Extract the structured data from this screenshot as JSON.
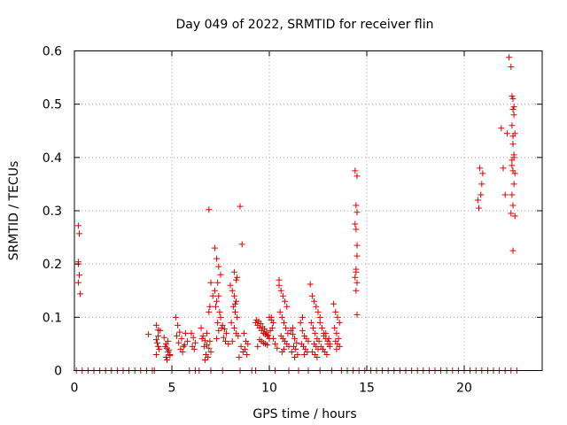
{
  "chart_data": {
    "type": "scatter",
    "title": "Day 049 of 2022, SRMTID for receiver flin",
    "xlabel": "GPS time / hours",
    "ylabel": "SRMTID / TECUs",
    "xlim": [
      0,
      24
    ],
    "ylim": [
      0,
      0.6
    ],
    "xticks": [
      0,
      5,
      10,
      15,
      20
    ],
    "yticks": [
      0,
      0.1,
      0.2,
      0.3,
      0.4,
      0.5,
      0.6
    ],
    "xtick_labels": [
      "0",
      "5",
      "10",
      "15",
      "20"
    ],
    "ytick_labels": [
      "0",
      "0.1",
      "0.2",
      "0.3",
      "0.4",
      "0.5",
      "0.6"
    ],
    "grid": true,
    "legend": "none",
    "marker": "plus",
    "color": "#e00000",
    "series": [
      {
        "name": "SRMTID",
        "x": [
          0.2,
          0.25,
          0.2,
          0.2,
          0.25,
          0.2,
          0.3,
          3.8,
          4.2,
          4.3,
          4.3,
          4.2,
          4.25,
          4.3,
          4.4,
          4.35,
          4.2,
          4.6,
          4.7,
          4.75,
          4.8,
          4.9,
          4.7,
          4.65,
          4.8,
          4.85,
          4.9,
          4.75,
          5.2,
          5.3,
          5.4,
          5.5,
          5.35,
          5.6,
          5.7,
          5.8,
          5.45,
          5.55,
          5.25,
          5.65,
          6.0,
          6.1,
          6.2,
          6.05,
          6.15,
          6.5,
          6.6,
          6.7,
          6.8,
          6.9,
          7.0,
          6.75,
          6.85,
          6.95,
          6.55,
          6.65,
          6.8,
          6.7,
          6.9,
          6.9,
          7.0,
          7.1,
          6.95,
          7.2,
          7.3,
          7.4,
          7.5,
          7.35,
          7.2,
          7.4,
          7.3,
          7.25,
          7.45,
          7.5,
          7.35,
          7.55,
          7.4,
          7.3,
          7.6,
          7.7,
          7.8,
          7.65,
          7.75,
          7.9,
          8.0,
          8.1,
          8.2,
          8.3,
          8.15,
          8.25,
          8.35,
          8.05,
          8.2,
          8.3,
          8.4,
          8.1,
          8.3,
          8.2,
          8.35,
          8.25,
          8.5,
          8.6,
          8.7,
          8.8,
          8.9,
          8.55,
          8.75,
          8.65,
          8.85,
          8.45,
          9.3,
          9.4,
          9.5,
          9.6,
          9.7,
          9.8,
          9.9,
          10.0,
          9.35,
          9.45,
          9.55,
          9.65,
          9.75,
          9.85,
          9.95,
          9.5,
          9.6,
          9.7,
          9.8,
          9.9,
          9.4,
          10.1,
          10.2,
          10.3,
          10.4,
          10.0,
          10.1,
          10.2,
          10.15,
          10.05,
          10.5,
          10.6,
          10.7,
          10.8,
          10.9,
          10.55,
          10.65,
          10.75,
          10.85,
          10.95,
          10.6,
          10.7,
          10.8,
          10.9,
          11.0,
          10.75,
          10.5,
          10.65,
          11.1,
          11.2,
          11.3,
          11.4,
          11.25,
          11.35,
          11.15,
          11.45,
          11.3,
          11.2,
          11.6,
          11.7,
          11.8,
          11.9,
          12.0,
          11.65,
          11.75,
          11.85,
          11.95,
          11.7,
          11.8,
          12.1,
          12.2,
          12.3,
          12.4,
          12.5,
          12.6,
          12.15,
          12.25,
          12.35,
          12.45,
          12.55,
          12.3,
          12.4,
          12.5,
          12.2,
          12.35,
          12.45,
          12.6,
          12.7,
          12.8,
          12.9,
          13.0,
          13.1,
          12.65,
          12.75,
          12.85,
          12.95,
          13.05,
          12.8,
          12.9,
          13.0,
          13.1,
          13.3,
          13.4,
          13.5,
          13.6,
          13.35,
          13.45,
          13.55,
          13.4,
          13.5,
          13.6,
          13.45,
          14.4,
          14.5,
          14.45,
          14.5,
          14.4,
          14.45,
          14.5,
          14.45,
          14.4,
          14.5,
          14.45,
          14.5,
          14.5,
          14.45,
          20.7,
          20.75,
          20.8,
          20.9,
          20.95,
          20.85,
          21.9,
          22.0,
          22.1,
          22.2,
          22.3,
          22.4,
          22.45,
          22.5,
          22.55,
          22.5,
          22.45,
          22.6,
          22.5,
          22.55,
          22.45,
          22.5,
          22.6,
          22.55,
          22.45,
          22.5,
          22.4,
          22.6,
          22.5,
          22.55,
          22.45,
          22.5,
          22.55
        ],
        "y": [
          0.272,
          0.257,
          0.204,
          0.2,
          0.179,
          0.165,
          0.144,
          0.068,
          0.085,
          0.076,
          0.065,
          0.058,
          0.052,
          0.045,
          0.075,
          0.04,
          0.03,
          0.062,
          0.05,
          0.042,
          0.035,
          0.03,
          0.025,
          0.045,
          0.055,
          0.038,
          0.028,
          0.02,
          0.1,
          0.085,
          0.072,
          0.06,
          0.052,
          0.045,
          0.07,
          0.055,
          0.04,
          0.035,
          0.065,
          0.048,
          0.07,
          0.062,
          0.052,
          0.045,
          0.04,
          0.08,
          0.065,
          0.056,
          0.048,
          0.042,
          0.035,
          0.03,
          0.025,
          0.055,
          0.06,
          0.045,
          0.07,
          0.02,
          0.11,
          0.302,
          0.165,
          0.14,
          0.12,
          0.23,
          0.21,
          0.195,
          0.18,
          0.165,
          0.15,
          0.14,
          0.13,
          0.12,
          0.11,
          0.1,
          0.09,
          0.08,
          0.075,
          0.06,
          0.085,
          0.078,
          0.07,
          0.062,
          0.055,
          0.05,
          0.16,
          0.15,
          0.14,
          0.13,
          0.12,
          0.11,
          0.1,
          0.09,
          0.08,
          0.07,
          0.065,
          0.055,
          0.17,
          0.185,
          0.175,
          0.125,
          0.308,
          0.237,
          0.07,
          0.055,
          0.05,
          0.045,
          0.04,
          0.035,
          0.03,
          0.025,
          0.09,
          0.085,
          0.08,
          0.075,
          0.07,
          0.068,
          0.065,
          0.06,
          0.095,
          0.092,
          0.088,
          0.082,
          0.078,
          0.072,
          0.066,
          0.058,
          0.055,
          0.052,
          0.05,
          0.048,
          0.045,
          0.1,
          0.06,
          0.05,
          0.042,
          0.1,
          0.095,
          0.09,
          0.08,
          0.075,
          0.16,
          0.15,
          0.14,
          0.13,
          0.12,
          0.11,
          0.1,
          0.09,
          0.08,
          0.07,
          0.065,
          0.06,
          0.055,
          0.05,
          0.045,
          0.04,
          0.17,
          0.035,
          0.075,
          0.068,
          0.06,
          0.052,
          0.045,
          0.04,
          0.035,
          0.03,
          0.025,
          0.08,
          0.09,
          0.075,
          0.065,
          0.06,
          0.055,
          0.05,
          0.045,
          0.04,
          0.035,
          0.1,
          0.03,
          0.162,
          0.14,
          0.13,
          0.12,
          0.11,
          0.1,
          0.09,
          0.08,
          0.07,
          0.06,
          0.055,
          0.05,
          0.045,
          0.04,
          0.035,
          0.03,
          0.025,
          0.09,
          0.08,
          0.07,
          0.06,
          0.055,
          0.05,
          0.045,
          0.04,
          0.035,
          0.03,
          0.06,
          0.065,
          0.07,
          0.05,
          0.045,
          0.125,
          0.11,
          0.1,
          0.09,
          0.08,
          0.07,
          0.06,
          0.055,
          0.05,
          0.045,
          0.04,
          0.375,
          0.365,
          0.31,
          0.297,
          0.275,
          0.265,
          0.215,
          0.185,
          0.175,
          0.165,
          0.15,
          0.105,
          0.235,
          0.19,
          0.32,
          0.305,
          0.38,
          0.35,
          0.37,
          0.33,
          0.455,
          0.38,
          0.33,
          0.445,
          0.588,
          0.57,
          0.515,
          0.51,
          0.495,
          0.49,
          0.46,
          0.445,
          0.425,
          0.405,
          0.395,
          0.375,
          0.37,
          0.35,
          0.33,
          0.31,
          0.295,
          0.29,
          0.44,
          0.4,
          0.385,
          0.225,
          0.48
        ],
        "zero_x": [
          0.1,
          0.4,
          0.7,
          1.0,
          1.3,
          1.6,
          1.9,
          2.2,
          2.5,
          2.8,
          3.1,
          3.4,
          3.7,
          4.0,
          4.1,
          5.0,
          5.9,
          6.2,
          6.4,
          7.0,
          7.6,
          8.5,
          9.1,
          9.3,
          10.3,
          11.0,
          11.5,
          12.0,
          12.6,
          13.2,
          13.7,
          14.0,
          14.3,
          14.6,
          14.9,
          15.2,
          15.5,
          15.8,
          16.1,
          16.4,
          16.7,
          17.0,
          17.3,
          17.6,
          17.9,
          18.2,
          18.5,
          18.8,
          19.1,
          19.4,
          19.7,
          20.0,
          20.3,
          20.6,
          20.9,
          21.2,
          21.5,
          21.8,
          22.1,
          22.4,
          22.7
        ]
      }
    ]
  }
}
